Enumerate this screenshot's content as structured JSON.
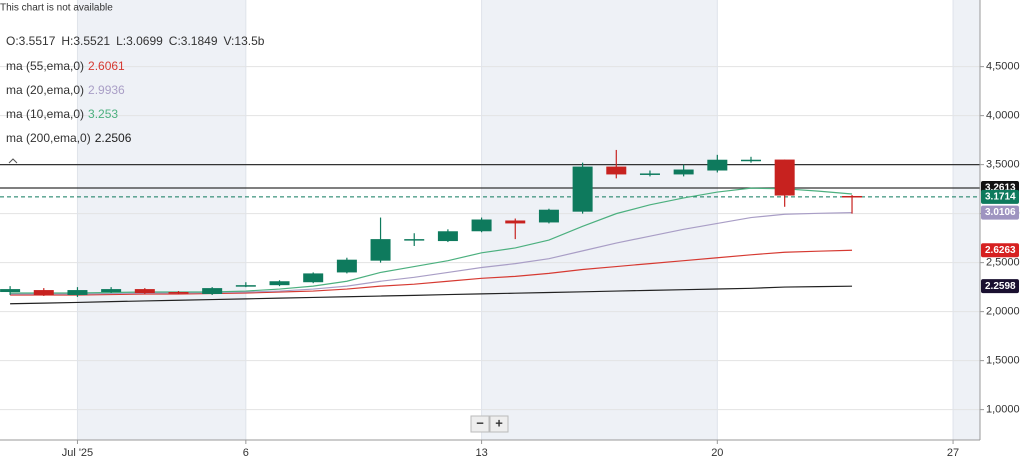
{
  "chart_data": {
    "type": "candlestick",
    "notice": "This chart is not available",
    "ohlc_header": [
      {
        "label": "O:",
        "value": 3.5517
      },
      {
        "label": "H:",
        "value": 3.5521
      },
      {
        "label": "L:",
        "value": 3.0699
      },
      {
        "label": "C:",
        "value": 3.1849
      },
      {
        "label": "V:",
        "value": "13.5b"
      }
    ],
    "x": [
      -1,
      0,
      1,
      2,
      3,
      4,
      5,
      6,
      7,
      8,
      9,
      10,
      11,
      12,
      13,
      14,
      15,
      16,
      17,
      18,
      19,
      20,
      21,
      22,
      23,
      24
    ],
    "candles": {
      "color_up": "#0e7a5d",
      "color_down": "#c7221f",
      "open": [
        2.2,
        2.22,
        2.17,
        2.2,
        2.23,
        2.2,
        2.18,
        2.27,
        2.27,
        2.3,
        2.4,
        2.52,
        2.73,
        2.72,
        2.82,
        2.93,
        2.91,
        3.02,
        3.48,
        3.4,
        3.4,
        3.44,
        3.55,
        3.5517,
        null,
        3.18
      ],
      "high": [
        2.26,
        2.24,
        2.25,
        2.25,
        2.24,
        2.21,
        2.25,
        2.3,
        2.32,
        2.4,
        2.55,
        2.96,
        2.8,
        2.84,
        2.96,
        2.95,
        3.05,
        3.52,
        3.65,
        3.44,
        3.5,
        3.6,
        3.58,
        3.5521,
        null,
        3.19
      ],
      "low": [
        2.17,
        2.16,
        2.15,
        2.19,
        2.18,
        2.18,
        2.17,
        2.25,
        2.26,
        2.29,
        2.39,
        2.5,
        2.67,
        2.71,
        2.81,
        2.74,
        2.9,
        3.0,
        3.36,
        3.38,
        3.38,
        3.42,
        3.52,
        3.0699,
        null,
        3.0
      ],
      "close": [
        2.23,
        2.17,
        2.22,
        2.23,
        2.19,
        2.19,
        2.24,
        2.27,
        2.31,
        2.39,
        2.53,
        2.74,
        2.74,
        2.82,
        2.94,
        2.9,
        3.04,
        3.48,
        3.4,
        3.41,
        3.45,
        3.55,
        3.55,
        3.1849,
        null,
        3.17
      ]
    },
    "series": [
      {
        "name": "ma (55,ema,0)",
        "legend_value": 2.6061,
        "color": "#d63a32",
        "values": [
          2.17,
          2.17,
          2.17,
          2.175,
          2.18,
          2.18,
          2.185,
          2.19,
          2.2,
          2.21,
          2.23,
          2.26,
          2.28,
          2.31,
          2.34,
          2.36,
          2.39,
          2.43,
          2.46,
          2.49,
          2.52,
          2.55,
          2.58,
          2.6061,
          2.617,
          2.6263
        ]
      },
      {
        "name": "ma (20,ema,0)",
        "legend_value": 2.9936,
        "color": "#a99ec6",
        "values": [
          2.18,
          2.18,
          2.18,
          2.185,
          2.19,
          2.19,
          2.195,
          2.2,
          2.21,
          2.23,
          2.26,
          2.31,
          2.35,
          2.4,
          2.45,
          2.49,
          2.54,
          2.62,
          2.7,
          2.77,
          2.84,
          2.9,
          2.96,
          2.9936,
          3.003,
          3.0106
        ]
      },
      {
        "name": "ma (10,ema,0)",
        "legend_value": 3.253,
        "color": "#4cb07f",
        "values": [
          2.19,
          2.19,
          2.19,
          2.195,
          2.2,
          2.2,
          2.2,
          2.21,
          2.23,
          2.26,
          2.31,
          2.4,
          2.46,
          2.52,
          2.6,
          2.65,
          2.73,
          2.87,
          3.0,
          3.09,
          3.16,
          3.22,
          3.26,
          3.253,
          3.23,
          3.2
        ]
      },
      {
        "name": "ma (200,ema,0)",
        "legend_value": 2.2506,
        "color": "#222222",
        "values": [
          2.08,
          2.087,
          2.094,
          2.102,
          2.109,
          2.116,
          2.123,
          2.13,
          2.138,
          2.145,
          2.152,
          2.159,
          2.166,
          2.174,
          2.181,
          2.188,
          2.195,
          2.202,
          2.21,
          2.217,
          2.224,
          2.231,
          2.238,
          2.2506,
          2.255,
          2.2598
        ]
      }
    ],
    "hlines": [
      3.5,
      3.2613
    ],
    "price_line": 3.1714,
    "side_labels": [
      {
        "value": 3.2613,
        "color": "#111111"
      },
      {
        "value": 3.1714,
        "color": "#0e7a5d"
      },
      {
        "value": 3.0106,
        "color": "#9e94c0"
      },
      {
        "value": 2.6263,
        "color": "#d62020"
      },
      {
        "value": 2.2598,
        "color": "#1a1030"
      }
    ],
    "xlim": [
      -1.3,
      27.8
    ],
    "xticks": [
      {
        "value": 1,
        "label": "Jul '25"
      },
      6,
      13,
      20,
      27
    ],
    "ylim": [
      0.69,
      5.18
    ],
    "yticks": [
      {
        "value": 1,
        "label": "1,0000"
      },
      {
        "value": 1.5,
        "label": "1,5000"
      },
      {
        "value": 2,
        "label": "2,0000"
      },
      {
        "value": 2.5,
        "label": "2,5000"
      },
      {
        "value": 3,
        "label": "3,0000"
      },
      {
        "value": 3.5,
        "label": "3,5000"
      },
      {
        "value": 4,
        "label": "4,0000"
      },
      {
        "value": 4.5,
        "label": "4,5000"
      }
    ],
    "grid": true,
    "zoom_buttons": [
      "−",
      "+"
    ]
  }
}
